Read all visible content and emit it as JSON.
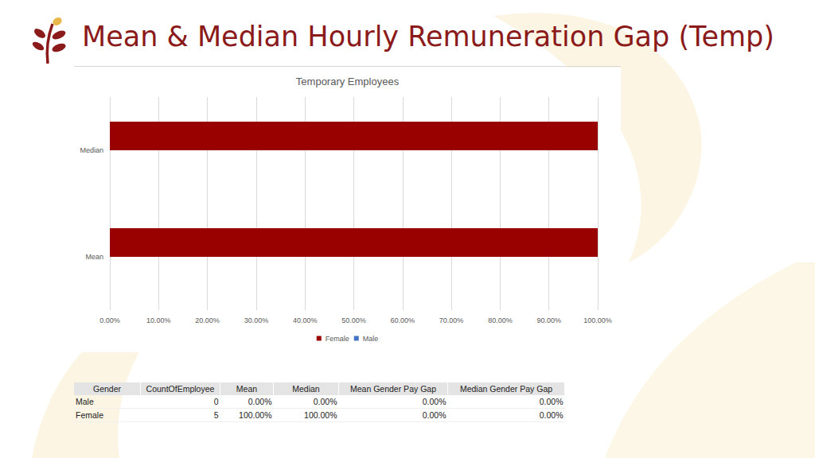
{
  "header": {
    "title": "Mean & Median Hourly Remuneration Gap (Temp)"
  },
  "chart_data": {
    "type": "bar",
    "orientation": "horizontal",
    "title": "Temporary Employees",
    "categories": [
      "Median",
      "Mean"
    ],
    "series": [
      {
        "name": "Female",
        "color": "#990000",
        "values": [
          100,
          100
        ]
      },
      {
        "name": "Male",
        "color": "#4472c4",
        "values": [
          0,
          0
        ]
      }
    ],
    "xlim": [
      0,
      100
    ],
    "xticks": [
      {
        "value": 0,
        "label": "0.00%"
      },
      {
        "value": 10,
        "label": "10.00%"
      },
      {
        "value": 20,
        "label": "20.00%"
      },
      {
        "value": 30,
        "label": "30.00%"
      },
      {
        "value": 40,
        "label": "40.00%"
      },
      {
        "value": 50,
        "label": "50.00%"
      },
      {
        "value": 60,
        "label": "60.00%"
      },
      {
        "value": 70,
        "label": "70.00%"
      },
      {
        "value": 80,
        "label": "80.00%"
      },
      {
        "value": 90,
        "label": "90.00%"
      },
      {
        "value": 100,
        "label": "100.00%"
      }
    ],
    "grid": true,
    "legend": "bottom"
  },
  "table": {
    "columns": [
      "Gender",
      "CountOfEmployee",
      "Mean",
      "Median",
      "Mean Gender Pay Gap",
      "Median Gender Pay Gap"
    ],
    "rows": [
      [
        "Male",
        "0",
        "0.00%",
        "0.00%",
        "0.00%",
        "0.00%"
      ],
      [
        "Female",
        "5",
        "100.00%",
        "100.00%",
        "0.00%",
        "0.00%"
      ]
    ]
  }
}
